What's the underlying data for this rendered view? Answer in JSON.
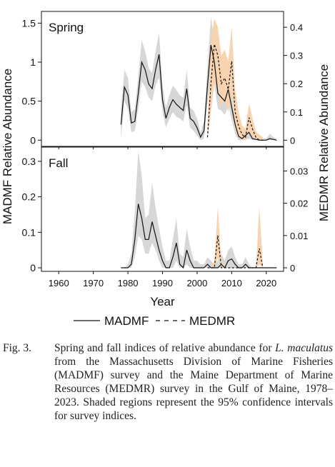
{
  "chart_data": {
    "type": "line",
    "xlabel": "Year",
    "ylabel_left": "MADMF Relative Abundance",
    "ylabel_right": "MEDMR Relative Abundance",
    "xlim": [
      1955,
      2025
    ],
    "xticks": [
      1960,
      1970,
      1980,
      1990,
      2000,
      2010,
      2020
    ],
    "legend": {
      "placement": "bottom-center",
      "entries": [
        "MADMF",
        "MEDMR"
      ]
    },
    "panels": [
      {
        "label": "Spring",
        "left_ylim": [
          -0.08,
          1.65
        ],
        "left_yticks": [
          0,
          0.5,
          1,
          1.5
        ],
        "right_ylim": [
          -0.022,
          0.456
        ],
        "right_yticks": [
          0,
          0.1,
          0.2,
          0.3,
          0.4
        ],
        "madmf": {
          "name": "MADMF",
          "x": [
            1978,
            1979,
            1980,
            1981,
            1982,
            1983,
            1984,
            1985,
            1986,
            1987,
            1988,
            1989,
            1990,
            1991,
            1992,
            1993,
            1994,
            1995,
            1996,
            1997,
            1998,
            1999,
            2000,
            2001,
            2002,
            2003,
            2004,
            2005,
            2006,
            2007,
            2008,
            2009,
            2010,
            2011,
            2012,
            2013,
            2014,
            2015,
            2016,
            2017,
            2018,
            2019,
            2020,
            2021,
            2022,
            2023
          ],
          "y": [
            0.2,
            0.68,
            0.58,
            0.22,
            0.24,
            0.6,
            1.0,
            0.9,
            0.72,
            0.66,
            0.9,
            1.1,
            0.52,
            0.28,
            0.42,
            0.52,
            0.46,
            0.42,
            0.38,
            0.66,
            0.28,
            0.24,
            0.16,
            0.04,
            0.12,
            0.7,
            1.22,
            1.0,
            0.6,
            0.55,
            0.5,
            0.65,
            0.42,
            0.2,
            0.05,
            0.02,
            0.06,
            0.1,
            0.02,
            0.01,
            0.0,
            0.0,
            0.0,
            0.02,
            0.01,
            0.0
          ],
          "ci_low": [
            0.02,
            0.5,
            0.4,
            0.1,
            0.12,
            0.4,
            0.75,
            0.68,
            0.55,
            0.5,
            0.7,
            0.8,
            0.36,
            0.16,
            0.28,
            0.36,
            0.3,
            0.28,
            0.24,
            0.45,
            0.16,
            0.12,
            0.06,
            0.0,
            0.02,
            0.48,
            0.88,
            0.72,
            0.4,
            0.38,
            0.32,
            0.45,
            0.26,
            0.08,
            0.0,
            0.0,
            0.0,
            0.02,
            0.0,
            0.0,
            0.0,
            0.0,
            0.0,
            0.0,
            0.0,
            0.0
          ],
          "ci_high": [
            0.4,
            0.9,
            0.8,
            0.36,
            0.4,
            0.82,
            1.28,
            1.14,
            0.92,
            0.86,
            1.14,
            1.38,
            0.7,
            0.42,
            0.58,
            0.7,
            0.64,
            0.58,
            0.54,
            0.9,
            0.42,
            0.38,
            0.28,
            0.1,
            0.24,
            0.94,
            1.58,
            1.3,
            0.82,
            0.74,
            0.7,
            0.86,
            0.6,
            0.34,
            0.12,
            0.06,
            0.14,
            0.2,
            0.06,
            0.04,
            0.02,
            0.02,
            0.02,
            0.08,
            0.04,
            0.02
          ]
        },
        "medmr": {
          "name": "MEDMR",
          "x": [
            2003,
            2004,
            2005,
            2006,
            2007,
            2008,
            2009,
            2010,
            2011,
            2012,
            2013,
            2014,
            2015,
            2016,
            2017,
            2018,
            2019
          ],
          "y": [
            0.01,
            0.2,
            0.34,
            0.3,
            0.2,
            0.22,
            0.18,
            0.28,
            0.1,
            0.05,
            0.02,
            0.01,
            0.08,
            0.04,
            0.01,
            0.0,
            0.0
          ],
          "ci_low": [
            0.0,
            0.1,
            0.2,
            0.18,
            0.12,
            0.14,
            0.1,
            0.16,
            0.04,
            0.01,
            0.0,
            0.0,
            0.03,
            0.01,
            0.0,
            0.0,
            0.0
          ],
          "ci_high": [
            0.04,
            0.35,
            0.43,
            0.4,
            0.3,
            0.32,
            0.28,
            0.4,
            0.18,
            0.1,
            0.05,
            0.04,
            0.13,
            0.08,
            0.03,
            0.02,
            0.01
          ]
        }
      },
      {
        "label": "Fall",
        "left_ylim": [
          -0.01,
          0.34
        ],
        "left_yticks": [
          0,
          0.1,
          0.2,
          0.3
        ],
        "right_ylim": [
          -0.0011,
          0.0374
        ],
        "right_yticks": [
          0,
          0.01,
          0.02,
          0.03
        ],
        "madmf": {
          "name": "MADMF",
          "x": [
            1978,
            1979,
            1980,
            1981,
            1982,
            1983,
            1984,
            1985,
            1986,
            1987,
            1988,
            1989,
            1990,
            1991,
            1992,
            1993,
            1994,
            1995,
            1996,
            1997,
            1998,
            1999,
            2000,
            2001,
            2002,
            2003,
            2004,
            2005,
            2006,
            2007,
            2008,
            2009,
            2010,
            2011,
            2012,
            2013,
            2014,
            2015,
            2016,
            2017,
            2018,
            2019,
            2020,
            2021,
            2022,
            2023
          ],
          "y": [
            0.0,
            0.0,
            0.0,
            0.01,
            0.08,
            0.18,
            0.14,
            0.08,
            0.08,
            0.13,
            0.09,
            0.05,
            0.02,
            0.0,
            0.0,
            0.03,
            0.07,
            0.01,
            0.0,
            0.05,
            0.02,
            0.0,
            0.0,
            0.0,
            0.0,
            0.01,
            0.0,
            0.0,
            0.0,
            0.01,
            0.0,
            0.02,
            0.025,
            0.01,
            0.0,
            0.0,
            0.01,
            0.0,
            0.0,
            0.0,
            0.0,
            0.0,
            0.0,
            0.0,
            0.0,
            0.0
          ],
          "ci_low": [
            0.0,
            0.0,
            0.0,
            0.0,
            0.03,
            0.09,
            0.08,
            0.04,
            0.04,
            0.07,
            0.05,
            0.02,
            0.0,
            0.0,
            0.0,
            0.0,
            0.02,
            0.0,
            0.0,
            0.01,
            0.0,
            0.0,
            0.0,
            0.0,
            0.0,
            0.0,
            0.0,
            0.0,
            0.0,
            0.0,
            0.0,
            0.0,
            0.0,
            0.0,
            0.0,
            0.0,
            0.0,
            0.0,
            0.0,
            0.0,
            0.0,
            0.0,
            0.0,
            0.0,
            0.0,
            0.0
          ],
          "ci_high": [
            0.0,
            0.0,
            0.01,
            0.04,
            0.16,
            0.33,
            0.26,
            0.14,
            0.15,
            0.24,
            0.17,
            0.11,
            0.06,
            0.02,
            0.02,
            0.08,
            0.14,
            0.04,
            0.03,
            0.11,
            0.06,
            0.02,
            0.02,
            0.01,
            0.01,
            0.03,
            0.02,
            0.01,
            0.02,
            0.04,
            0.02,
            0.05,
            0.06,
            0.03,
            0.01,
            0.01,
            0.03,
            0.01,
            0.0,
            0.0,
            0.0,
            0.0,
            0.0,
            0.0,
            0.0,
            0.0
          ]
        },
        "medmr": {
          "name": "MEDMR",
          "x": [
            2003,
            2004,
            2005,
            2006,
            2007,
            2008,
            2009,
            2010,
            2011,
            2012,
            2013,
            2014,
            2015,
            2016,
            2017,
            2018,
            2019
          ],
          "y": [
            0.0,
            0.0,
            0.0,
            0.01,
            0.0,
            0.0,
            0.0,
            0.0,
            0.0,
            0.0,
            0.0,
            0.0,
            0.0,
            0.0,
            0.0,
            0.006,
            0.0
          ],
          "ci_low": [
            0.0,
            0.0,
            0.0,
            0.003,
            0.0,
            0.0,
            0.0,
            0.0,
            0.0,
            0.0,
            0.0,
            0.0,
            0.0,
            0.0,
            0.0,
            0.001,
            0.0
          ],
          "ci_high": [
            0.0,
            0.0,
            0.002,
            0.019,
            0.002,
            0.0,
            0.0,
            0.0,
            0.0,
            0.0,
            0.0,
            0.0,
            0.0,
            0.0,
            0.0,
            0.019,
            0.001
          ]
        }
      }
    ]
  },
  "colors": {
    "madmf_line": "#111111",
    "madmf_ci": "#d7d7d7",
    "medmr_line": "#111111",
    "medmr_ci": "#f8d3b0"
  },
  "caption": {
    "label": "Fig. 3.",
    "text_before": "Spring and fall indices of relative abundance for ",
    "species": "L. maculatus",
    "text_after": " from the Massachusetts Division of Marine Fisheries (MADMF) survey and the Maine Department of Marine Resources (MEDMR) survey in the Gulf of Maine, 1978–2023. Shaded regions represent the 95% confidence intervals for survey indices."
  }
}
